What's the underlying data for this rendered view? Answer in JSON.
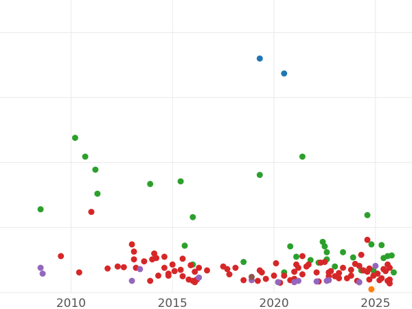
{
  "chart_data": {
    "type": "scatter",
    "title": "",
    "xlabel": "",
    "ylabel": "",
    "xlim": [
      2006.5,
      2026.8
    ],
    "ylim": [
      0,
      450
    ],
    "grid": true,
    "x_ticks": [
      2010,
      2015,
      2020,
      2025
    ],
    "x_tick_labels": [
      "2010",
      "2015",
      "2020",
      "2025"
    ],
    "y_ticks": [
      0,
      100,
      200,
      300,
      400
    ],
    "colors": {
      "blue": "#1f77b4",
      "green": "#2ca02c",
      "red": "#d62728",
      "purple": "#9467bd",
      "orange": "#ff7f0e",
      "brown": "#8c564b"
    },
    "series": [
      {
        "color": "#1f77b4",
        "points": [
          [
            2019.3,
            360
          ],
          [
            2020.5,
            337
          ]
        ]
      },
      {
        "color": "#2ca02c",
        "points": [
          [
            2008.5,
            128
          ],
          [
            2010.2,
            238
          ],
          [
            2010.7,
            209
          ],
          [
            2011.2,
            189
          ],
          [
            2011.3,
            152
          ],
          [
            2013.9,
            167
          ],
          [
            2015.4,
            171
          ],
          [
            2015.6,
            72
          ],
          [
            2016.0,
            116
          ],
          [
            2016.0,
            43
          ],
          [
            2018.5,
            47
          ],
          [
            2019.3,
            181
          ],
          [
            2020.5,
            31
          ],
          [
            2020.8,
            71
          ],
          [
            2021.1,
            55
          ],
          [
            2021.4,
            209
          ],
          [
            2021.8,
            50
          ],
          [
            2022.2,
            46
          ],
          [
            2022.4,
            78
          ],
          [
            2022.5,
            71
          ],
          [
            2022.6,
            62
          ],
          [
            2022.6,
            51
          ],
          [
            2023.0,
            40
          ],
          [
            2023.4,
            62
          ],
          [
            2023.9,
            54
          ],
          [
            2024.3,
            34
          ],
          [
            2024.6,
            119
          ],
          [
            2024.8,
            74
          ],
          [
            2024.9,
            34
          ],
          [
            2025.3,
            73
          ],
          [
            2025.4,
            53
          ],
          [
            2025.6,
            56
          ],
          [
            2025.8,
            57
          ],
          [
            2025.9,
            31
          ]
        ]
      },
      {
        "color": "#d62728",
        "points": [
          [
            2009.5,
            56
          ],
          [
            2010.4,
            31
          ],
          [
            2011.0,
            124
          ],
          [
            2011.8,
            37
          ],
          [
            2012.3,
            40
          ],
          [
            2012.6,
            39
          ],
          [
            2013.0,
            74
          ],
          [
            2013.1,
            63
          ],
          [
            2013.1,
            51
          ],
          [
            2013.2,
            38
          ],
          [
            2013.6,
            48
          ],
          [
            2013.9,
            18
          ],
          [
            2014.0,
            51
          ],
          [
            2014.1,
            60
          ],
          [
            2014.2,
            53
          ],
          [
            2014.3,
            26
          ],
          [
            2014.6,
            55
          ],
          [
            2014.6,
            38
          ],
          [
            2014.8,
            29
          ],
          [
            2014.8,
            26
          ],
          [
            2015.0,
            43
          ],
          [
            2015.1,
            33
          ],
          [
            2015.4,
            35
          ],
          [
            2015.5,
            25
          ],
          [
            2015.5,
            52
          ],
          [
            2015.8,
            20
          ],
          [
            2015.9,
            42
          ],
          [
            2016.0,
            18
          ],
          [
            2016.1,
            16
          ],
          [
            2016.1,
            32
          ],
          [
            2016.2,
            20
          ],
          [
            2016.3,
            38
          ],
          [
            2016.7,
            34
          ],
          [
            2017.5,
            40
          ],
          [
            2017.7,
            36
          ],
          [
            2017.8,
            28
          ],
          [
            2018.1,
            38
          ],
          [
            2018.5,
            19
          ],
          [
            2019.2,
            18
          ],
          [
            2019.3,
            34
          ],
          [
            2019.4,
            31
          ],
          [
            2019.6,
            21
          ],
          [
            2020.0,
            26
          ],
          [
            2020.1,
            45
          ],
          [
            2020.3,
            15
          ],
          [
            2020.5,
            26
          ],
          [
            2020.8,
            19
          ],
          [
            2021.0,
            21
          ],
          [
            2021.0,
            32
          ],
          [
            2021.1,
            43
          ],
          [
            2021.2,
            38
          ],
          [
            2021.4,
            28
          ],
          [
            2021.4,
            56
          ],
          [
            2021.6,
            40
          ],
          [
            2021.7,
            43
          ],
          [
            2022.1,
            31
          ],
          [
            2022.2,
            17
          ],
          [
            2022.3,
            46
          ],
          [
            2022.5,
            47
          ],
          [
            2022.7,
            31
          ],
          [
            2022.7,
            25
          ],
          [
            2022.8,
            33
          ],
          [
            2023.0,
            25
          ],
          [
            2023.2,
            30
          ],
          [
            2023.2,
            22
          ],
          [
            2023.4,
            38
          ],
          [
            2023.6,
            22
          ],
          [
            2023.8,
            35
          ],
          [
            2023.8,
            26
          ],
          [
            2024.0,
            44
          ],
          [
            2024.1,
            18
          ],
          [
            2024.2,
            16
          ],
          [
            2024.2,
            41
          ],
          [
            2024.3,
            58
          ],
          [
            2024.4,
            34
          ],
          [
            2024.6,
            32
          ],
          [
            2024.7,
            37
          ],
          [
            2024.7,
            20
          ],
          [
            2024.9,
            26
          ],
          [
            2025.1,
            29
          ],
          [
            2025.3,
            22
          ],
          [
            2025.5,
            33
          ],
          [
            2025.6,
            18
          ],
          [
            2025.6,
            43
          ],
          [
            2025.7,
            20
          ],
          [
            2025.7,
            14
          ],
          [
            2025.7,
            38
          ],
          [
            2024.6,
            81
          ],
          [
            2024.4,
            34
          ],
          [
            2025.2,
            19
          ],
          [
            2025.4,
            36
          ]
        ]
      },
      {
        "color": "#9467bd",
        "points": [
          [
            2008.5,
            38
          ],
          [
            2008.6,
            29
          ],
          [
            2013.0,
            18
          ],
          [
            2013.4,
            36
          ],
          [
            2016.3,
            23
          ],
          [
            2018.9,
            19
          ],
          [
            2020.2,
            16
          ],
          [
            2021.0,
            16
          ],
          [
            2021.2,
            18
          ],
          [
            2022.1,
            17
          ],
          [
            2022.6,
            18
          ],
          [
            2022.7,
            19
          ],
          [
            2024.2,
            16
          ],
          [
            2025.0,
            41
          ]
        ]
      },
      {
        "color": "#ff7f0e",
        "points": [
          [
            2024.8,
            5
          ]
        ]
      },
      {
        "color": "#8c564b",
        "points": [
          [
            2018.9,
            24
          ]
        ]
      }
    ]
  }
}
